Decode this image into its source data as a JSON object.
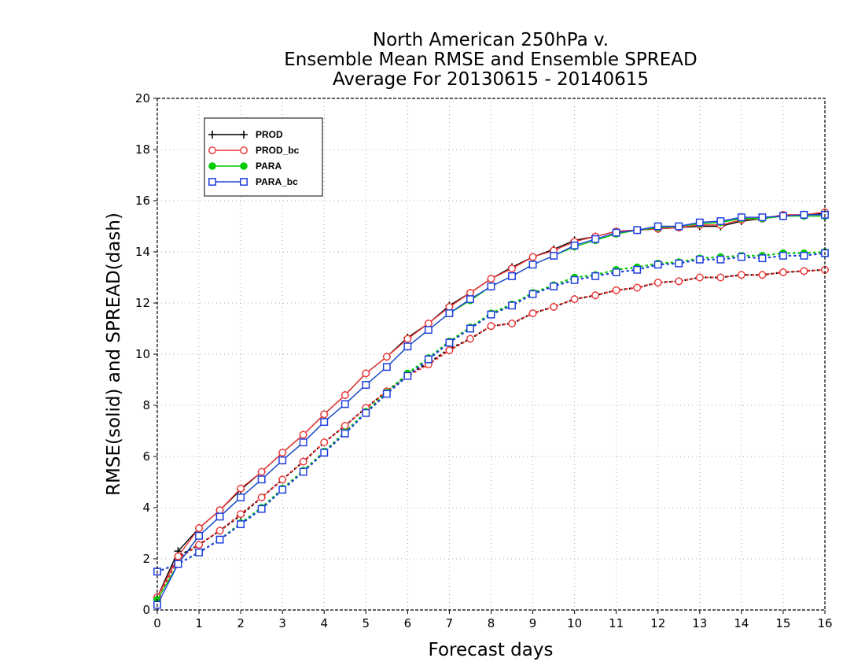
{
  "chart_data": {
    "type": "line",
    "title_lines": [
      "North American 250hPa v.",
      "Ensemble Mean RMSE and Ensemble SPREAD",
      "Average For 20130615 - 20140615"
    ],
    "xlabel": "Forecast days",
    "ylabel": "RMSE(solid) and SPREAD(dash)",
    "xlim": [
      0,
      16
    ],
    "ylim": [
      0,
      20
    ],
    "x_ticks": [
      0,
      1,
      2,
      3,
      4,
      5,
      6,
      7,
      8,
      9,
      10,
      11,
      12,
      13,
      14,
      15,
      16
    ],
    "y_ticks": [
      0,
      2,
      4,
      6,
      8,
      10,
      12,
      14,
      16,
      18,
      20
    ],
    "grid": true,
    "legend_position": "top-left",
    "x": [
      0,
      0.5,
      1,
      1.5,
      2,
      2.5,
      3,
      3.5,
      4,
      4.5,
      5,
      5.5,
      6,
      6.5,
      7,
      7.5,
      8,
      8.5,
      9,
      9.5,
      10,
      10.5,
      11,
      11.5,
      12,
      12.5,
      13,
      13.5,
      14,
      14.5,
      15,
      15.5,
      16
    ],
    "series": [
      {
        "name": "PROD",
        "color": "#000000",
        "marker": "plus",
        "rmse": [
          0.5,
          2.3,
          3.2,
          3.9,
          4.7,
          5.4,
          6.15,
          6.85,
          7.65,
          8.4,
          9.25,
          9.9,
          10.65,
          11.2,
          11.9,
          12.4,
          12.95,
          13.4,
          13.8,
          14.1,
          14.45,
          14.6,
          14.8,
          14.85,
          14.9,
          14.95,
          15.0,
          15.0,
          15.2,
          15.3,
          15.4,
          15.45,
          15.5
        ],
        "spread": [
          0.4,
          2.1,
          2.55,
          3.1,
          3.7,
          4.4,
          5.1,
          5.8,
          6.55,
          7.2,
          7.9,
          8.55,
          9.2,
          9.65,
          10.2,
          10.6,
          11.1,
          11.2,
          11.6,
          11.85,
          12.15,
          12.3,
          12.5,
          12.6,
          12.8,
          12.85,
          13.0,
          13.0,
          13.1,
          13.1,
          13.2,
          13.25,
          13.3
        ]
      },
      {
        "name": "PROD_bc",
        "color": "#ee3333",
        "marker": "circle",
        "rmse": [
          0.5,
          2.1,
          3.2,
          3.9,
          4.75,
          5.4,
          6.15,
          6.85,
          7.65,
          8.4,
          9.25,
          9.9,
          10.6,
          11.2,
          11.85,
          12.4,
          12.95,
          13.35,
          13.8,
          14.05,
          14.4,
          14.6,
          14.8,
          14.85,
          14.9,
          14.95,
          15.05,
          15.05,
          15.25,
          15.3,
          15.45,
          15.45,
          15.55
        ],
        "spread": [
          0.4,
          2.0,
          2.55,
          3.1,
          3.75,
          4.4,
          5.1,
          5.8,
          6.55,
          7.2,
          7.9,
          8.55,
          9.15,
          9.6,
          10.15,
          10.6,
          11.1,
          11.2,
          11.6,
          11.85,
          12.15,
          12.3,
          12.5,
          12.6,
          12.8,
          12.85,
          13.0,
          13.0,
          13.1,
          13.1,
          13.2,
          13.25,
          13.3
        ]
      },
      {
        "name": "PARA",
        "color": "#00cc00",
        "marker": "filled-circle",
        "rmse": [
          0.4,
          1.8,
          2.9,
          3.65,
          4.4,
          5.1,
          5.85,
          6.55,
          7.35,
          8.05,
          8.8,
          9.5,
          10.3,
          10.95,
          11.6,
          12.1,
          12.65,
          13.05,
          13.5,
          13.85,
          14.2,
          14.45,
          14.7,
          14.85,
          14.95,
          15.0,
          15.1,
          15.15,
          15.3,
          15.3,
          15.4,
          15.4,
          15.4
        ],
        "spread": [
          1.5,
          1.8,
          2.25,
          2.75,
          3.4,
          4.0,
          4.75,
          5.45,
          6.2,
          6.95,
          7.75,
          8.5,
          9.25,
          9.85,
          10.5,
          11.05,
          11.6,
          11.95,
          12.4,
          12.7,
          13.0,
          13.1,
          13.3,
          13.4,
          13.55,
          13.6,
          13.75,
          13.8,
          13.85,
          13.85,
          13.95,
          13.95,
          14.0
        ]
      },
      {
        "name": "PARA_bc",
        "color": "#1f3fdd",
        "marker": "square",
        "rmse": [
          0.2,
          1.8,
          2.9,
          3.65,
          4.4,
          5.1,
          5.85,
          6.55,
          7.35,
          8.05,
          8.8,
          9.5,
          10.3,
          10.95,
          11.6,
          12.15,
          12.65,
          13.05,
          13.5,
          13.85,
          14.25,
          14.5,
          14.75,
          14.85,
          15.0,
          15.0,
          15.15,
          15.2,
          15.35,
          15.35,
          15.4,
          15.45,
          15.45
        ],
        "spread": [
          1.5,
          1.8,
          2.25,
          2.75,
          3.35,
          3.95,
          4.7,
          5.4,
          6.15,
          6.9,
          7.7,
          8.45,
          9.15,
          9.8,
          10.45,
          11.0,
          11.55,
          11.9,
          12.35,
          12.65,
          12.9,
          13.05,
          13.2,
          13.3,
          13.5,
          13.55,
          13.7,
          13.7,
          13.8,
          13.75,
          13.85,
          13.85,
          13.95
        ]
      }
    ]
  }
}
